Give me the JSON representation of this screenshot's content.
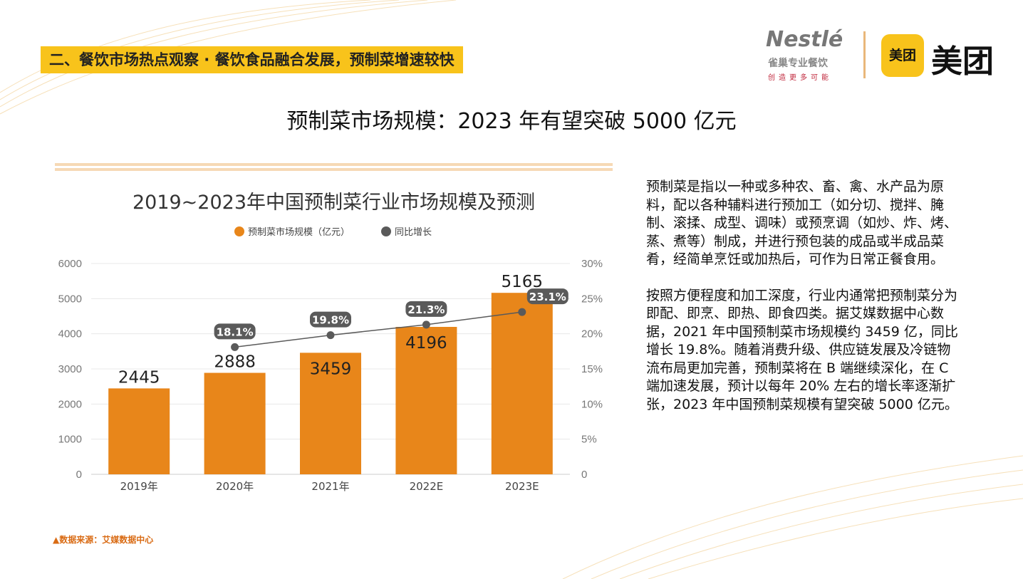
{
  "section_title": "二、餐饮市场热点观察 · 餐饮食品融合发展，预制菜增速较快",
  "slide_title": "预制菜市场规模：2023 年有望突破 5000 亿元",
  "logos": {
    "nestle": "Nestlé",
    "nestle_sub": "雀巢专业餐饮",
    "nestle_slogan": "创造更多可能",
    "meituan_icon": "美团",
    "meituan_text": "美团"
  },
  "chart_data": {
    "type": "bar+line",
    "title": "2019~2023年中国预制菜行业市场规模及预测",
    "categories": [
      "2019年",
      "2020年",
      "2021年",
      "2022E",
      "2023E"
    ],
    "series": [
      {
        "name": "预制菜市场规模（亿元）",
        "type": "bar",
        "axis": "left",
        "color": "#e8861a",
        "values": [
          2445,
          2888,
          3459,
          4196,
          5165
        ]
      },
      {
        "name": "同比增长",
        "type": "line",
        "axis": "right",
        "color": "#5a5a5a",
        "values": [
          null,
          18.1,
          19.8,
          21.3,
          23.1
        ],
        "labels": [
          "",
          "18.1%",
          "19.8%",
          "21.3%",
          "23.1%"
        ]
      }
    ],
    "left_axis": {
      "ylim": [
        0,
        6000
      ],
      "ticks": [
        "0",
        "1000",
        "2000",
        "3000",
        "4000",
        "5000",
        "6000"
      ]
    },
    "right_axis": {
      "ylim": [
        0,
        30
      ],
      "ticks": [
        "0",
        "5%",
        "10%",
        "15%",
        "20%",
        "25%",
        "30%"
      ]
    },
    "legend": "top-center",
    "grid": true
  },
  "description": [
    "预制菜是指以一种或多种农、畜、禽、水产品为原料，配以各种辅料进行预加工（如分切、搅拌、腌制、滚揉、成型、调味）或预烹调（如炒、炸、烤、蒸、煮等）制成，并进行预包装的成品或半成品菜肴，经简单烹饪或加热后，可作为日常正餐食用。",
    "按照方便程度和加工深度，行业内通常把预制菜分为即配、即烹、即热、即食四类。据艾媒数据中心数据，2021 年中国预制菜市场规模约 3459 亿，同比增长 19.8%。随着消费升级、供应链发展及冷链物流布局更加完善，预制菜将在 B 端继续深化，在 C 端加速发展，预计以每年 20% 左右的增长率逐渐扩张，2023 年中国预制菜规模有望突破 5000 亿元。"
  ],
  "source": "▲数据来源：艾媒数据中心"
}
